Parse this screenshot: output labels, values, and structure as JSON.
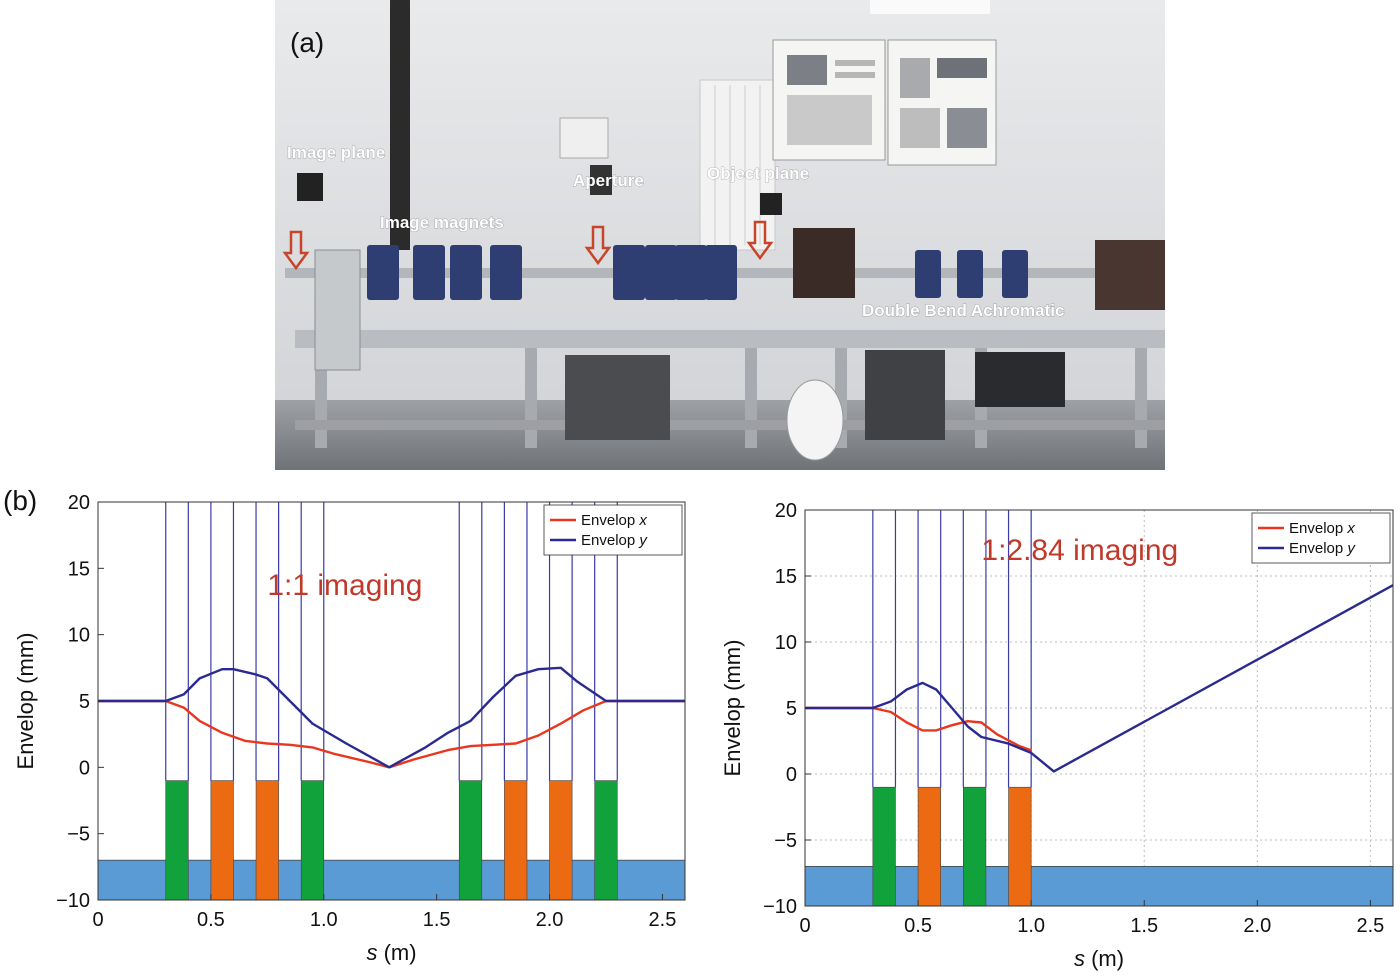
{
  "panel_a": {
    "label": "(a)",
    "annotations": [
      {
        "key": "image_plane",
        "text": "Image plane"
      },
      {
        "key": "image_magnets",
        "text": "Image magnets"
      },
      {
        "key": "aperture",
        "text": "Aperture"
      },
      {
        "key": "object_plane",
        "text": "Object plane"
      },
      {
        "key": "dba",
        "text": "Double Bend Achromatic"
      }
    ]
  },
  "panel_b": {
    "label": "(b)"
  },
  "colors": {
    "envelope_x": "#e8371e",
    "envelope_y": "#2b2a8f",
    "element_line": "#3a3aa8",
    "quad_green": "#12a23c",
    "quad_orange": "#ec6a12",
    "beamline_blue": "#5b9bd5",
    "imaging_text": "#c0392b"
  },
  "chart_data": [
    {
      "type": "line",
      "title": "1:1 imaging",
      "xlabel_italic": "s",
      "xlabel_unit": "(m)",
      "ylabel": "Envelop (mm)",
      "xlim": [
        0,
        2.6
      ],
      "ylim": [
        -10,
        20
      ],
      "x_ticks": [
        0,
        0.5,
        1.0,
        1.5,
        2.0,
        2.5
      ],
      "x_tick_labels": [
        "0",
        "0.5",
        "1.0",
        "1.5",
        "2.0",
        "2.5"
      ],
      "y_ticks": [
        -10,
        -5,
        0,
        5,
        10,
        15,
        20
      ],
      "y_tick_labels": [
        "−10",
        "−5",
        "0",
        "5",
        "10",
        "15",
        "20"
      ],
      "grid": false,
      "legend_position": "top-right",
      "series": [
        {
          "name": "Envelop x",
          "legend_text": "Envelop ",
          "legend_italic": "x",
          "color_key": "envelope_x",
          "x": [
            0,
            0.3,
            0.38,
            0.45,
            0.55,
            0.65,
            0.75,
            0.85,
            0.95,
            1.05,
            1.2,
            1.29,
            1.4,
            1.55,
            1.65,
            1.75,
            1.85,
            1.95,
            2.05,
            2.15,
            2.25,
            2.6
          ],
          "y": [
            5.0,
            5.0,
            4.5,
            3.5,
            2.6,
            2.0,
            1.8,
            1.7,
            1.5,
            1.0,
            0.4,
            0.0,
            0.6,
            1.3,
            1.6,
            1.7,
            1.8,
            2.4,
            3.3,
            4.3,
            5.0,
            5.0
          ]
        },
        {
          "name": "Envelop y",
          "legend_text": "Envelop ",
          "legend_italic": "y",
          "color_key": "envelope_y",
          "x": [
            0,
            0.3,
            0.38,
            0.45,
            0.55,
            0.6,
            0.7,
            0.75,
            0.85,
            0.95,
            1.1,
            1.29,
            1.45,
            1.55,
            1.65,
            1.75,
            1.85,
            1.95,
            2.05,
            2.12,
            2.25,
            2.6
          ],
          "y": [
            5.0,
            5.0,
            5.5,
            6.7,
            7.4,
            7.4,
            7.0,
            6.7,
            5.0,
            3.3,
            1.8,
            0.0,
            1.5,
            2.6,
            3.5,
            5.3,
            6.9,
            7.4,
            7.5,
            6.5,
            5.0,
            5.0
          ]
        }
      ],
      "element_lines": [
        0.3,
        0.4,
        0.5,
        0.6,
        0.7,
        0.8,
        0.9,
        1.0,
        1.6,
        1.7,
        1.8,
        1.9,
        2.0,
        2.1,
        2.2,
        2.3
      ],
      "magnets": [
        {
          "start": 0.3,
          "end": 0.4,
          "color_key": "quad_green"
        },
        {
          "start": 0.5,
          "end": 0.6,
          "color_key": "quad_orange"
        },
        {
          "start": 0.7,
          "end": 0.8,
          "color_key": "quad_orange"
        },
        {
          "start": 0.9,
          "end": 1.0,
          "color_key": "quad_green"
        },
        {
          "start": 1.6,
          "end": 1.7,
          "color_key": "quad_green"
        },
        {
          "start": 1.8,
          "end": 1.9,
          "color_key": "quad_orange"
        },
        {
          "start": 2.0,
          "end": 2.1,
          "color_key": "quad_orange"
        },
        {
          "start": 2.2,
          "end": 2.3,
          "color_key": "quad_green"
        }
      ],
      "magnet_y_range": [
        -10,
        -1
      ],
      "beamline_y_range": [
        -10,
        -7
      ],
      "label_position": {
        "x": 0.75,
        "y": 13
      }
    },
    {
      "type": "line",
      "title": "1:2.84 imaging",
      "xlabel_italic": "s",
      "xlabel_unit": "(m)",
      "ylabel": "Envelop (mm)",
      "xlim": [
        0,
        2.6
      ],
      "ylim": [
        -10,
        20
      ],
      "x_ticks": [
        0,
        0.5,
        1.0,
        1.5,
        2.0,
        2.5
      ],
      "x_tick_labels": [
        "0",
        "0.5",
        "1.0",
        "1.5",
        "2.0",
        "2.5"
      ],
      "y_ticks": [
        -10,
        -5,
        0,
        5,
        10,
        15,
        20
      ],
      "y_tick_labels": [
        "−10",
        "−5",
        "0",
        "5",
        "10",
        "15",
        "20"
      ],
      "grid": true,
      "legend_position": "top-right",
      "series": [
        {
          "name": "Envelop x",
          "legend_text": "Envelop ",
          "legend_italic": "x",
          "color_key": "envelope_x",
          "x": [
            0,
            0.3,
            0.38,
            0.45,
            0.52,
            0.58,
            0.65,
            0.72,
            0.78,
            0.85,
            0.95,
            1.0
          ],
          "y": [
            5.0,
            5.0,
            4.7,
            3.9,
            3.3,
            3.3,
            3.7,
            4.0,
            3.9,
            3.0,
            2.1,
            1.8
          ]
        },
        {
          "name": "Envelop y",
          "legend_text": "Envelop ",
          "legend_italic": "y",
          "color_key": "envelope_y",
          "x": [
            0,
            0.3,
            0.38,
            0.45,
            0.52,
            0.58,
            0.65,
            0.72,
            0.78,
            0.9,
            1.0,
            1.1,
            2.6
          ],
          "y": [
            5.0,
            5.0,
            5.5,
            6.4,
            6.9,
            6.4,
            5.0,
            3.6,
            2.8,
            2.3,
            1.6,
            0.2,
            14.3
          ]
        }
      ],
      "element_lines": [
        0.3,
        0.4,
        0.5,
        0.6,
        0.7,
        0.8,
        0.9,
        1.0
      ],
      "magnets": [
        {
          "start": 0.3,
          "end": 0.4,
          "color_key": "quad_green"
        },
        {
          "start": 0.5,
          "end": 0.6,
          "color_key": "quad_orange"
        },
        {
          "start": 0.7,
          "end": 0.8,
          "color_key": "quad_green"
        },
        {
          "start": 0.9,
          "end": 1.0,
          "color_key": "quad_orange"
        }
      ],
      "magnet_y_range": [
        -10,
        -1
      ],
      "beamline_y_range": [
        -10,
        -7
      ],
      "label_position": {
        "x": 0.78,
        "y": 16.2
      }
    }
  ]
}
